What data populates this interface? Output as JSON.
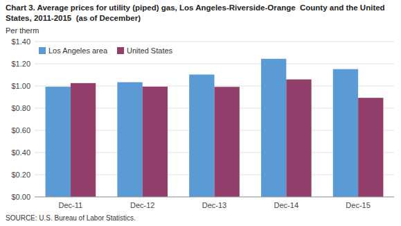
{
  "chart_data": {
    "type": "bar",
    "title": "Chart 3. Average prices for utility (piped) gas, Los Angeles-Riverside-Orange  County and the United States, 2011-2015  (as of December)",
    "y_label": "Per therm",
    "annotations": [
      "SOURCE: U.S. Bureau of Labor Statistics."
    ],
    "categories": [
      "Dec-11",
      "Dec-12",
      "Dec-13",
      "Dec-14",
      "Dec-15"
    ],
    "series": [
      {
        "name": "Los Angeles area",
        "color": "#5B9BD5",
        "values": [
          0.993,
          1.034,
          1.103,
          1.245,
          1.152
        ]
      },
      {
        "name": "United States",
        "color": "#943F6B",
        "values": [
          1.026,
          0.994,
          0.992,
          1.059,
          0.893
        ]
      }
    ],
    "ylim": [
      0,
      1.4
    ],
    "yticks": [
      {
        "value": 0.0,
        "label": "$0.00"
      },
      {
        "value": 0.2,
        "label": "$0.20"
      },
      {
        "value": 0.4,
        "label": "$0.40"
      },
      {
        "value": 0.6,
        "label": "$0.60"
      },
      {
        "value": 0.8,
        "label": "$0.80"
      },
      {
        "value": 1.0,
        "label": "$1.00"
      },
      {
        "value": 1.2,
        "label": "$1.20"
      },
      {
        "value": 1.4,
        "label": "$1.40"
      }
    ],
    "grid": true,
    "legend": "upper left"
  }
}
